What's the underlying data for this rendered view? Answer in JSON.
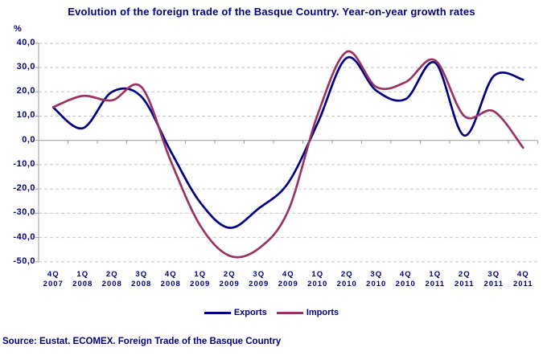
{
  "page": {
    "title": "Evolution of the foreign trade of the Basque Country. Year-on-year growth rates",
    "source_note": "Source: Eustat. ECOMEX. Foreign Trade of the Basque Country"
  },
  "chart_data": {
    "type": "line",
    "title": "Evolution of the foreign trade of the Basque Country. Year-on-year growth rates",
    "xlabel": "",
    "ylabel": "%",
    "ylim": [
      -50,
      40
    ],
    "y_ticks": [
      40,
      30,
      20,
      10,
      0,
      -10,
      -20,
      -30,
      -40,
      -50
    ],
    "y_tick_labels": [
      "40,0",
      "30,0",
      "20,0",
      "10,0",
      "0,0",
      "-10,0",
      "-20,0",
      "-30,0",
      "-40,0",
      "-50,0"
    ],
    "grid": "horizontal-dashed",
    "legend_position": "bottom-center",
    "line_style": "smoothed",
    "axis_color": "#9c9c9c",
    "gridline_color": "#c6c6c6",
    "text_color": "#000080",
    "categories": [
      {
        "quarter": "4Q",
        "year": "2007"
      },
      {
        "quarter": "1Q",
        "year": "2008"
      },
      {
        "quarter": "2Q",
        "year": "2008"
      },
      {
        "quarter": "3Q",
        "year": "2008"
      },
      {
        "quarter": "4Q",
        "year": "2008"
      },
      {
        "quarter": "1Q",
        "year": "2009"
      },
      {
        "quarter": "2Q",
        "year": "2009"
      },
      {
        "quarter": "3Q",
        "year": "2009"
      },
      {
        "quarter": "4Q",
        "year": "2009"
      },
      {
        "quarter": "1Q",
        "year": "2010"
      },
      {
        "quarter": "2Q",
        "year": "2010"
      },
      {
        "quarter": "3Q",
        "year": "2010"
      },
      {
        "quarter": "4Q",
        "year": "2010"
      },
      {
        "quarter": "1Q",
        "year": "2011"
      },
      {
        "quarter": "2Q",
        "year": "2011"
      },
      {
        "quarter": "3Q",
        "year": "2011"
      },
      {
        "quarter": "4Q",
        "year": "2011"
      }
    ],
    "series": [
      {
        "name": "Exports",
        "color": "#000080",
        "values": [
          13.5,
          5.0,
          20.0,
          18.0,
          -4.5,
          -25.5,
          -36.0,
          -28.0,
          -17.5,
          7.0,
          34.0,
          20.5,
          17.0,
          32.0,
          2.0,
          26.5,
          25.0
        ]
      },
      {
        "name": "Imports",
        "color": "#993366",
        "values": [
          13.7,
          18.3,
          16.5,
          22.0,
          -8.5,
          -35.0,
          -47.5,
          -44.5,
          -29.0,
          10.5,
          36.5,
          22.0,
          24.0,
          33.0,
          10.0,
          12.0,
          -3.0
        ]
      }
    ]
  }
}
